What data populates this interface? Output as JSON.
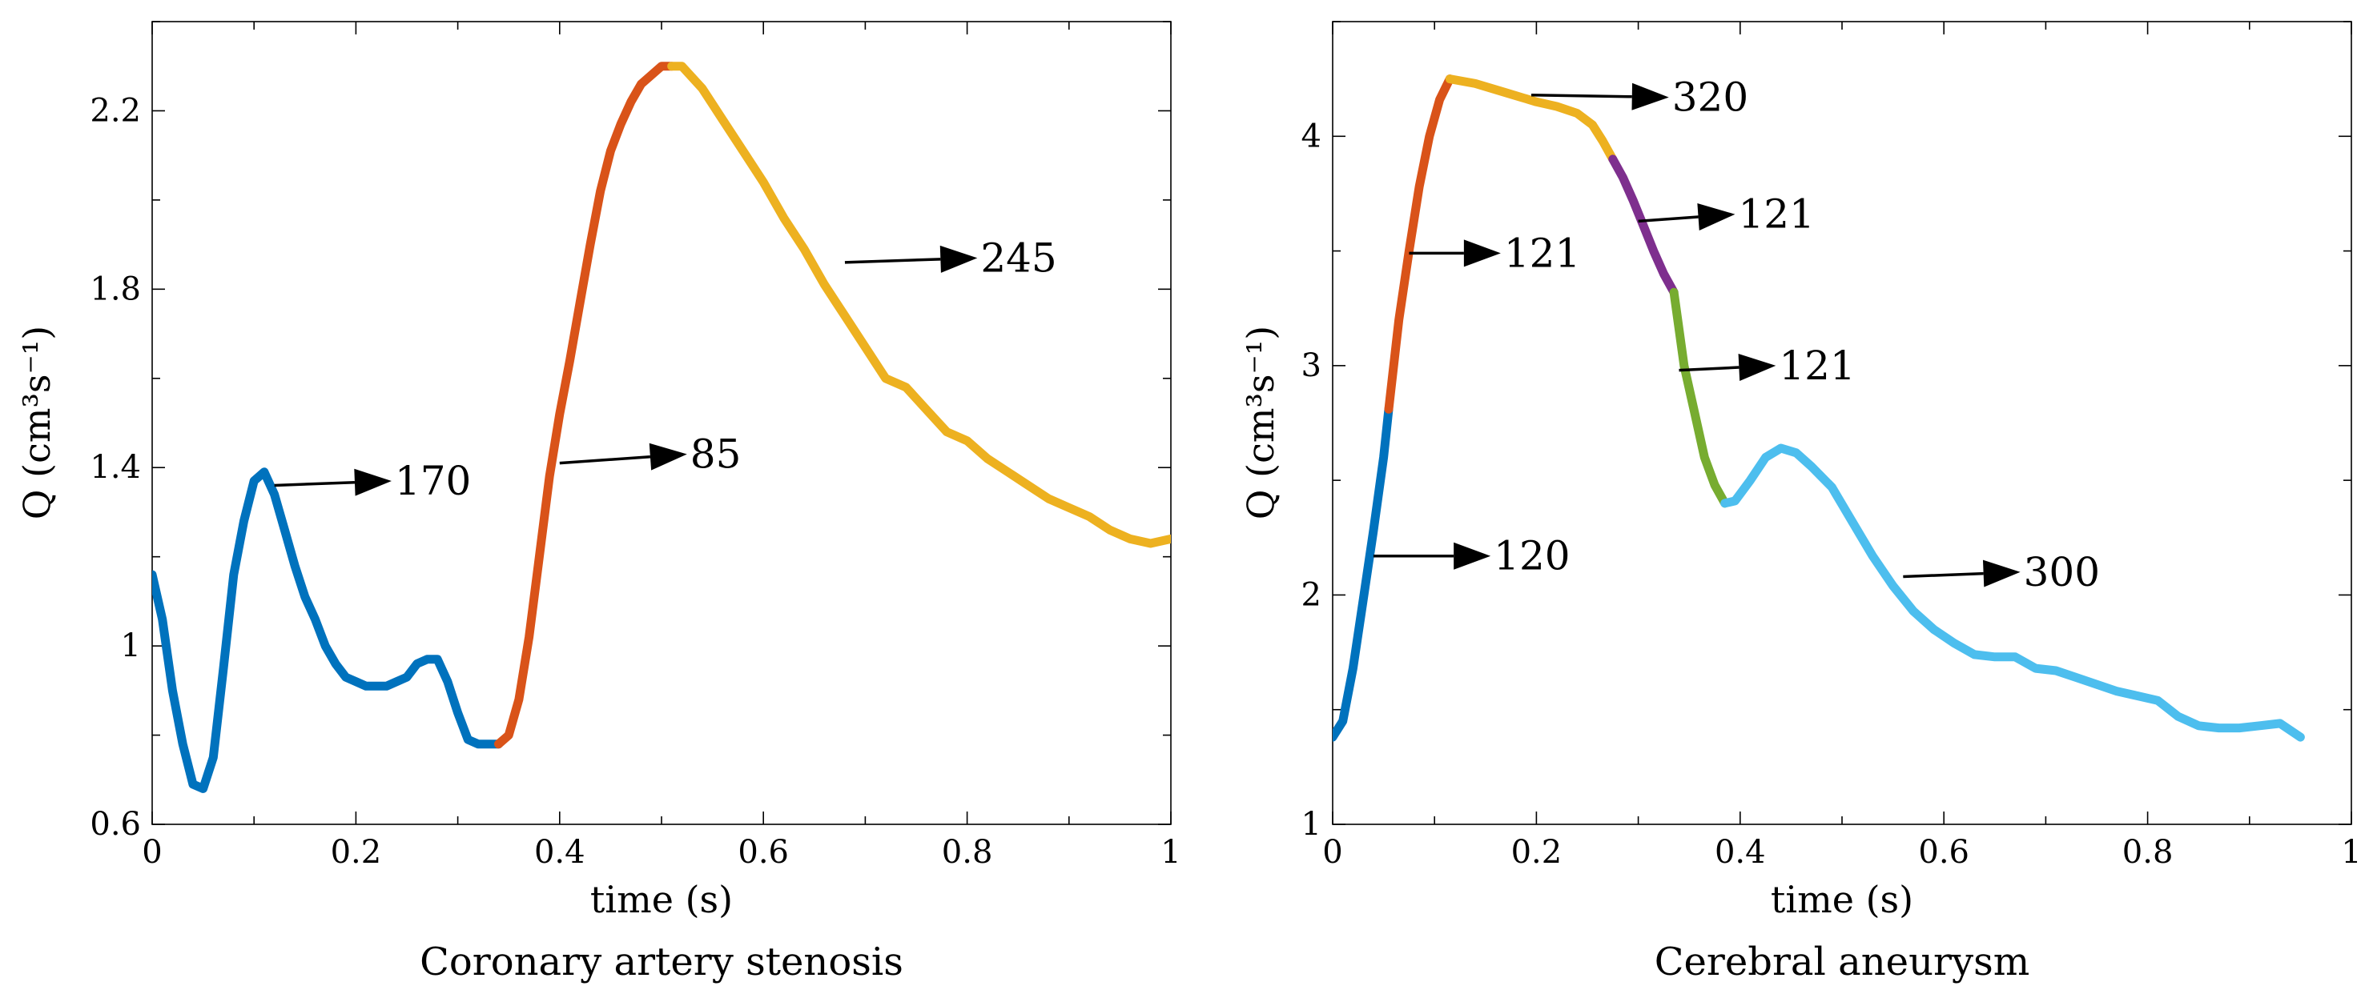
{
  "chart_data": [
    {
      "type": "line",
      "caption": "Coronary artery stenosis",
      "xlabel": "time (s)",
      "ylabel": "Q (cm³s⁻¹)",
      "xlim": [
        0,
        1
      ],
      "ylim": [
        0.6,
        2.4
      ],
      "xticks": [
        0,
        0.2,
        0.4,
        0.6,
        0.8,
        1
      ],
      "xtick_labels": [
        "0",
        "0.2",
        "0.4",
        "0.6",
        "0.8",
        "1"
      ],
      "yticks": [
        0.6,
        1,
        1.4,
        1.8,
        2.2
      ],
      "ytick_labels": [
        "0.6",
        "1",
        "1.4",
        "1.8",
        "2.2"
      ],
      "series": [
        {
          "name": "segment-1",
          "color": "#0072BD",
          "x": [
            0,
            0.01,
            0.02,
            0.03,
            0.04,
            0.05,
            0.06,
            0.07,
            0.08,
            0.09,
            0.1,
            0.11,
            0.12,
            0.13,
            0.14,
            0.15,
            0.16,
            0.17,
            0.18,
            0.19,
            0.2,
            0.21,
            0.22,
            0.23,
            0.24,
            0.25,
            0.26,
            0.27,
            0.28,
            0.29,
            0.3,
            0.31,
            0.32,
            0.33,
            0.34
          ],
          "y": [
            1.16,
            1.06,
            0.9,
            0.78,
            0.69,
            0.68,
            0.75,
            0.95,
            1.16,
            1.28,
            1.37,
            1.39,
            1.34,
            1.26,
            1.18,
            1.11,
            1.06,
            1.0,
            0.96,
            0.93,
            0.92,
            0.91,
            0.91,
            0.91,
            0.92,
            0.93,
            0.96,
            0.97,
            0.97,
            0.92,
            0.85,
            0.79,
            0.78,
            0.78,
            0.78
          ]
        },
        {
          "name": "segment-2",
          "color": "#D95319",
          "x": [
            0.34,
            0.35,
            0.36,
            0.37,
            0.38,
            0.39,
            0.4,
            0.41,
            0.42,
            0.43,
            0.44,
            0.45,
            0.46,
            0.47,
            0.48,
            0.49,
            0.5,
            0.51
          ],
          "y": [
            0.78,
            0.8,
            0.88,
            1.02,
            1.2,
            1.38,
            1.52,
            1.64,
            1.77,
            1.9,
            2.02,
            2.11,
            2.17,
            2.22,
            2.26,
            2.28,
            2.3,
            2.3
          ]
        },
        {
          "name": "segment-3",
          "color": "#EDB120",
          "x": [
            0.51,
            0.52,
            0.54,
            0.56,
            0.58,
            0.6,
            0.62,
            0.64,
            0.66,
            0.68,
            0.7,
            0.72,
            0.74,
            0.76,
            0.78,
            0.8,
            0.82,
            0.84,
            0.86,
            0.88,
            0.9,
            0.92,
            0.94,
            0.96,
            0.98,
            1.0
          ],
          "y": [
            2.3,
            2.3,
            2.25,
            2.18,
            2.11,
            2.04,
            1.96,
            1.89,
            1.81,
            1.74,
            1.67,
            1.6,
            1.58,
            1.53,
            1.48,
            1.46,
            1.42,
            1.39,
            1.36,
            1.33,
            1.31,
            1.29,
            1.26,
            1.24,
            1.23,
            1.24
          ]
        }
      ],
      "annotations": [
        {
          "text": "170",
          "tail": [
            0.12,
            1.36
          ],
          "head": [
            0.235,
            1.37
          ]
        },
        {
          "text": "85",
          "tail": [
            0.4,
            1.41
          ],
          "head": [
            0.525,
            1.43
          ]
        },
        {
          "text": "245",
          "tail": [
            0.68,
            1.86
          ],
          "head": [
            0.81,
            1.87
          ]
        }
      ]
    },
    {
      "type": "line",
      "caption": "Cerebral aneurysm",
      "xlabel": "time (s)",
      "ylabel": "Q (cm³s⁻¹)",
      "xlim": [
        0,
        1
      ],
      "ylim": [
        1,
        4.5
      ],
      "xticks": [
        0,
        0.2,
        0.4,
        0.6,
        0.8,
        1
      ],
      "xtick_labels": [
        "0",
        "0.2",
        "0.4",
        "0.6",
        "0.8",
        "1"
      ],
      "yticks": [
        1,
        2,
        3,
        4
      ],
      "ytick_labels": [
        "1",
        "2",
        "3",
        "4"
      ],
      "series": [
        {
          "name": "segment-1",
          "color": "#0072BD",
          "x": [
            0,
            0.01,
            0.02,
            0.03,
            0.04,
            0.05,
            0.055
          ],
          "y": [
            1.38,
            1.45,
            1.68,
            1.98,
            2.28,
            2.6,
            2.81
          ]
        },
        {
          "name": "segment-2",
          "color": "#D95319",
          "x": [
            0.055,
            0.065,
            0.075,
            0.085,
            0.095,
            0.105,
            0.115
          ],
          "y": [
            2.81,
            3.2,
            3.5,
            3.78,
            4.0,
            4.16,
            4.25
          ]
        },
        {
          "name": "segment-3",
          "color": "#EDB120",
          "x": [
            0.115,
            0.14,
            0.17,
            0.2,
            0.22,
            0.24,
            0.255,
            0.265,
            0.275
          ],
          "y": [
            4.25,
            4.23,
            4.19,
            4.15,
            4.13,
            4.1,
            4.05,
            3.98,
            3.9
          ]
        },
        {
          "name": "segment-4",
          "color": "#7E2F8E",
          "x": [
            0.275,
            0.285,
            0.295,
            0.305,
            0.315,
            0.325,
            0.335
          ],
          "y": [
            3.9,
            3.82,
            3.72,
            3.61,
            3.5,
            3.4,
            3.32
          ]
        },
        {
          "name": "segment-5",
          "color": "#77AC30",
          "x": [
            0.335,
            0.345,
            0.355,
            0.365,
            0.375,
            0.385
          ],
          "y": [
            3.32,
            3.0,
            2.8,
            2.6,
            2.48,
            2.4
          ]
        },
        {
          "name": "segment-6",
          "color": "#4DBEEE",
          "x": [
            0.385,
            0.395,
            0.41,
            0.425,
            0.44,
            0.455,
            0.47,
            0.49,
            0.51,
            0.53,
            0.55,
            0.57,
            0.59,
            0.61,
            0.63,
            0.65,
            0.67,
            0.69,
            0.71,
            0.73,
            0.75,
            0.77,
            0.79,
            0.81,
            0.83,
            0.85,
            0.87,
            0.89,
            0.91,
            0.93,
            0.95
          ],
          "y": [
            2.4,
            2.41,
            2.5,
            2.6,
            2.64,
            2.62,
            2.56,
            2.47,
            2.32,
            2.17,
            2.04,
            1.93,
            1.85,
            1.79,
            1.74,
            1.73,
            1.73,
            1.68,
            1.67,
            1.64,
            1.61,
            1.58,
            1.56,
            1.54,
            1.47,
            1.43,
            1.42,
            1.42,
            1.43,
            1.44,
            1.38
          ]
        }
      ],
      "annotations": [
        {
          "text": "120",
          "tail": [
            0.04,
            2.17
          ],
          "head": [
            0.155,
            2.17
          ]
        },
        {
          "text": "121",
          "tail": [
            0.075,
            3.49
          ],
          "head": [
            0.165,
            3.49
          ]
        },
        {
          "text": "320",
          "tail": [
            0.195,
            4.18
          ],
          "head": [
            0.33,
            4.17
          ]
        },
        {
          "text": "121",
          "tail": [
            0.3,
            3.63
          ],
          "head": [
            0.395,
            3.66
          ]
        },
        {
          "text": "121",
          "tail": [
            0.34,
            2.98
          ],
          "head": [
            0.435,
            3.0
          ]
        },
        {
          "text": "300",
          "tail": [
            0.56,
            2.08
          ],
          "head": [
            0.675,
            2.1
          ]
        }
      ]
    }
  ]
}
